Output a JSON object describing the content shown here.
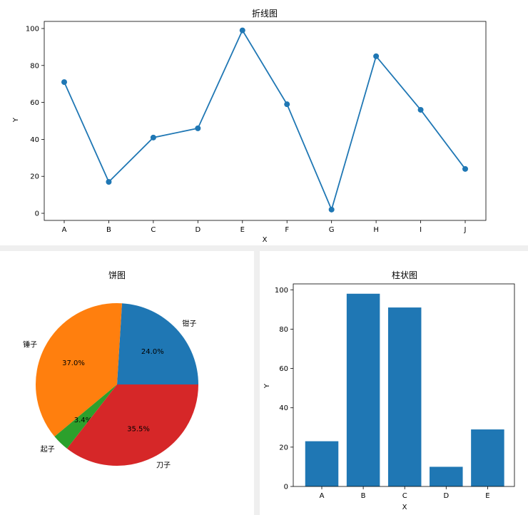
{
  "chart_data": [
    {
      "type": "line",
      "title": "折线图",
      "xlabel": "X",
      "ylabel": "Y",
      "categories": [
        "A",
        "B",
        "C",
        "D",
        "E",
        "F",
        "G",
        "H",
        "I",
        "J"
      ],
      "values": [
        71,
        17,
        41,
        46,
        99,
        59,
        2,
        85,
        56,
        24
      ],
      "ylim": [
        -3.85,
        103.85
      ],
      "yticks": [
        0,
        20,
        40,
        60,
        80,
        100
      ],
      "color": "#1f77b4",
      "grid": false
    },
    {
      "type": "pie",
      "title": "饼图",
      "slices": [
        {
          "label": "钳子",
          "value": 24.0,
          "pct_label": "24.0%",
          "color": "#1f77b4"
        },
        {
          "label": "锤子",
          "value": 37.0,
          "pct_label": "37.0%",
          "color": "#ff7f0e"
        },
        {
          "label": "起子",
          "value": 3.4,
          "pct_label": "3.4%",
          "color": "#2ca02c"
        },
        {
          "label": "刀子",
          "value": 35.5,
          "pct_label": "35.5%",
          "color": "#d62728"
        }
      ]
    },
    {
      "type": "bar",
      "title": "柱状图",
      "xlabel": "X",
      "ylabel": "Y",
      "categories": [
        "A",
        "B",
        "C",
        "D",
        "E"
      ],
      "values": [
        23,
        98,
        91,
        10,
        29
      ],
      "ylim": [
        0,
        103
      ],
      "yticks": [
        0,
        20,
        40,
        60,
        80,
        100
      ],
      "color": "#1f77b4",
      "grid": false
    }
  ]
}
